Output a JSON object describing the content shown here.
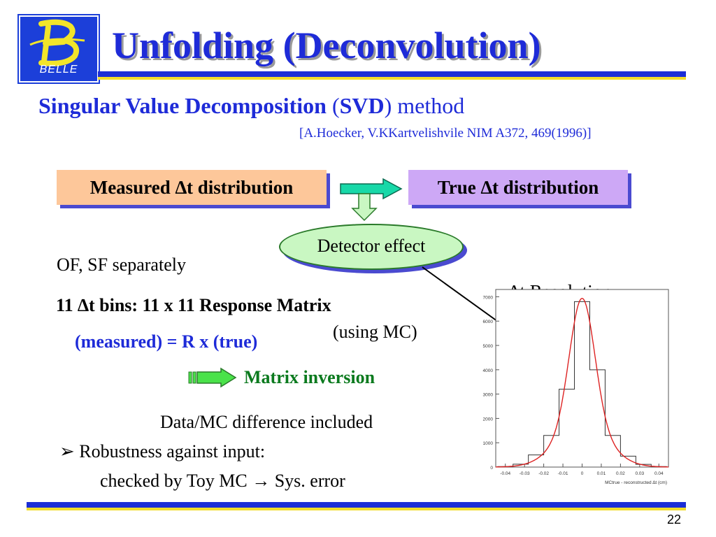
{
  "logo": {
    "letter": "B",
    "text": "BELLE"
  },
  "title": "Unfolding (Deconvolution)",
  "subtitle": {
    "bold_part": "Singular Value Decomposition",
    "paren_open": " (",
    "abbr": "SVD",
    "paren_close": ") method"
  },
  "reference": "[A.Hoecker, V.KKartvelishvile NIM A372, 469(1996)]",
  "diagram": {
    "measured_box": "Measured ∆t distribution",
    "true_box": "True ∆t distribution",
    "detector_effect": "Detector effect"
  },
  "body": {
    "of_sf": "OF, SF separately",
    "bins": "11 ∆t bins:  11 x 11 Response Matrix",
    "equation": "(measured) = R x (true)",
    "using_mc": "(using MC)",
    "matrix_inversion": "Matrix inversion",
    "data_mc": "Data/MC difference included",
    "robustness": "➢ Robustness against input:",
    "checked": "checked by Toy MC  → Sys. error"
  },
  "resolution_label": "∆t Resolution",
  "plot": {
    "y_ticks": [
      "7000",
      "6000",
      "5000",
      "4000",
      "3000",
      "2000",
      "1000",
      "0"
    ],
    "x_ticks": [
      "-0.04",
      "-0.03",
      "-0.02",
      "-0.01",
      "0",
      "0.01",
      "0.02",
      "0.03",
      "0.04"
    ],
    "x_label": "MCtrue - reconstructed ∆t  (cm)",
    "histogram": [
      20,
      120,
      500,
      1300,
      3200,
      6800,
      4000,
      1300,
      450,
      110,
      20
    ],
    "ylim": [
      0,
      7300
    ],
    "xlim": [
      -0.045,
      0.045
    ],
    "colors": {
      "histogram": "#333333",
      "fit": "#dd2222"
    }
  },
  "page_number": "22",
  "colors": {
    "blue": "#1e2bd8",
    "green": "#0b7a1e",
    "rule_yellow": "#f2dd2a"
  }
}
